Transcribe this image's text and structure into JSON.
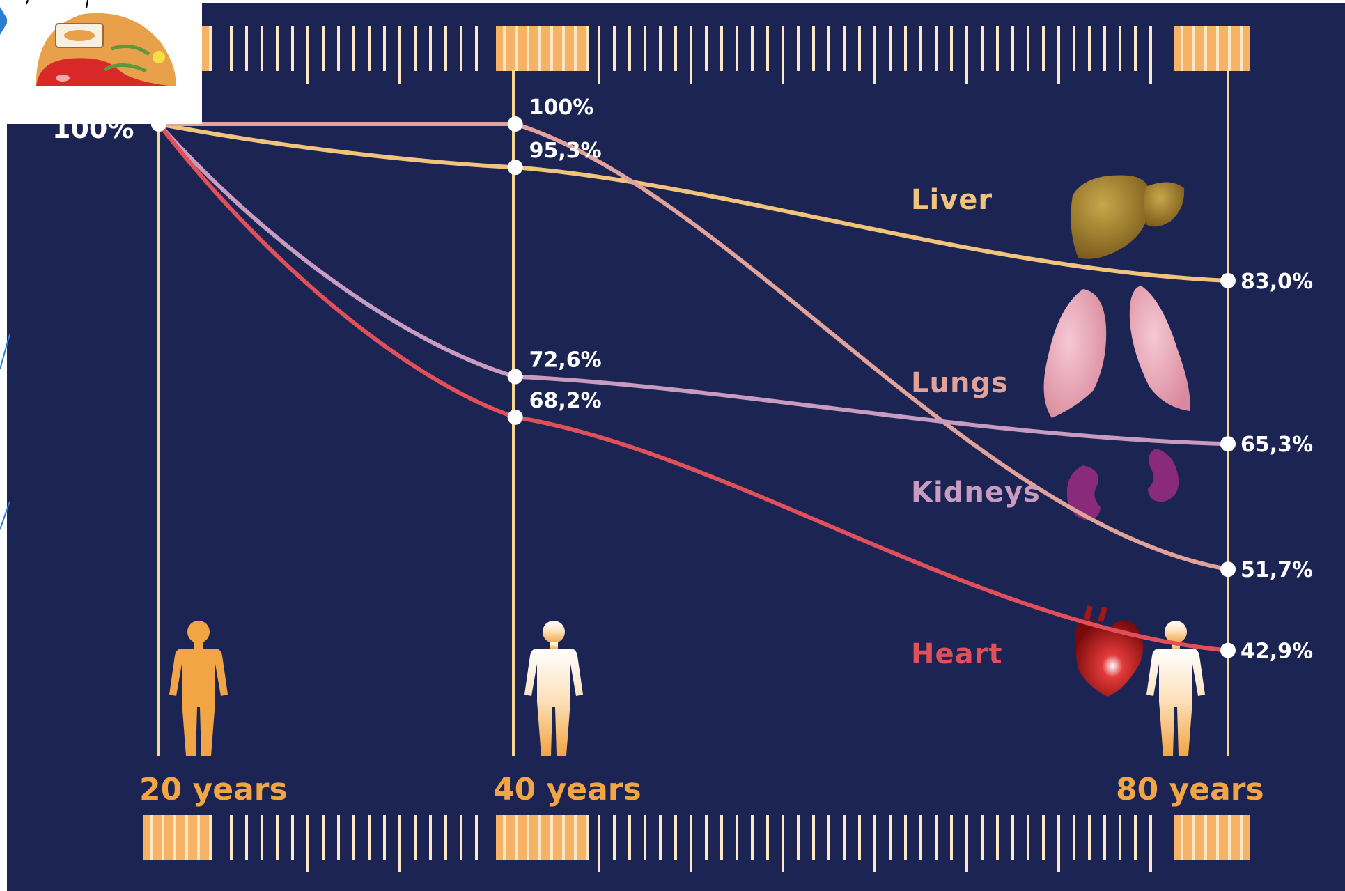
{
  "chart_data": {
    "type": "line",
    "categories": [
      "20 years",
      "40 years",
      "80 years"
    ],
    "x": [
      20,
      40,
      80
    ],
    "xlim": [
      20,
      80
    ],
    "ylim": [
      40,
      100
    ],
    "start_label": "100%",
    "series": [
      {
        "name": "Liver",
        "key": "liver",
        "values": [
          100,
          95.3,
          83.0
        ],
        "labels": [
          "",
          "95,3%",
          "83,0%"
        ],
        "color": "#f0c47c"
      },
      {
        "name": "Lungs",
        "key": "lungs",
        "values": [
          100,
          100,
          51.7
        ],
        "labels": [
          "",
          "100%",
          "51,7%"
        ],
        "color": "#e0a29a"
      },
      {
        "name": "Kidneys",
        "key": "kidneys",
        "values": [
          100,
          72.6,
          65.3
        ],
        "labels": [
          "",
          "72,6%",
          "65,3%"
        ],
        "color": "#c89bc0"
      },
      {
        "name": "Heart",
        "key": "heart",
        "values": [
          100,
          68.2,
          42.9
        ],
        "labels": [
          "",
          "68,2%",
          "42,9%"
        ],
        "color": "#e0505a"
      }
    ]
  },
  "colors": {
    "background": "#1b2452",
    "gridline": "#f4d894",
    "accent": "#f2a544",
    "band": "#f6b366"
  },
  "icons": [
    "cell-organelle-icon",
    "liver-icon",
    "lungs-icon",
    "kidneys-icon",
    "heart-icon",
    "human-figure-icon"
  ]
}
